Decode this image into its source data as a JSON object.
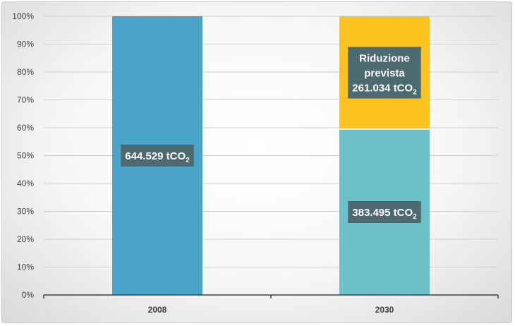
{
  "chart_data": {
    "type": "bar",
    "stacked": true,
    "percent_scale": true,
    "categories": [
      "2008",
      "2030"
    ],
    "series": [
      {
        "values": [
          100,
          59.5
        ],
        "colors": [
          "#4aa3c8",
          "#6cc0c9"
        ],
        "labels": [
          {
            "main": "644.529 tCO",
            "sub": "2"
          },
          {
            "main": "383.495 tCO",
            "sub": "2"
          }
        ]
      },
      {
        "values": [
          0,
          40.5
        ],
        "colors": [
          "#4aa3c8",
          "#fcc21f"
        ],
        "labels": [
          null,
          {
            "lines": [
              "Riduzione",
              "prevista"
            ],
            "main": "261.034 tCO",
            "sub": "2"
          }
        ]
      }
    ],
    "yticks": [
      "0%",
      "10%",
      "20%",
      "30%",
      "40%",
      "50%",
      "60%",
      "70%",
      "80%",
      "90%",
      "100%"
    ],
    "ylim": [
      0,
      100
    ],
    "grid": true,
    "colors": {
      "gridline": "#d0d0d0",
      "axis": "#404040",
      "label_box": "#4d6a70"
    }
  }
}
